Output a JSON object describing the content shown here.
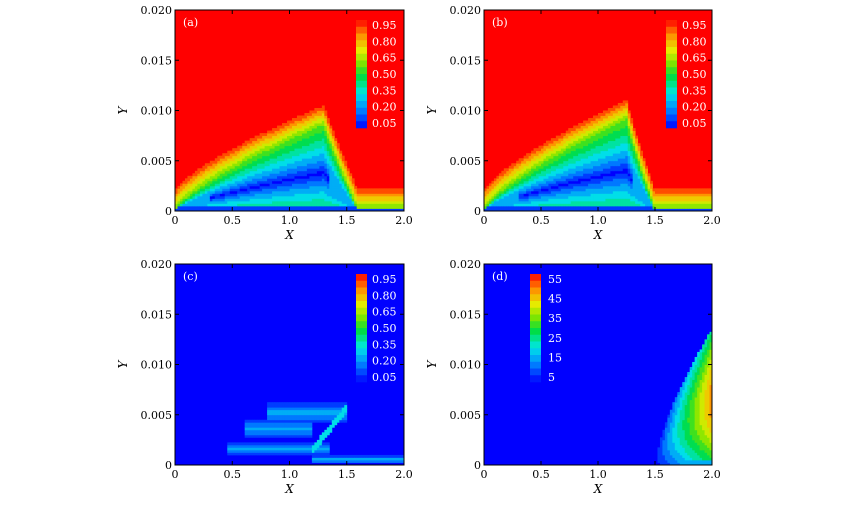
{
  "chart_data": [
    {
      "type": "heatmap",
      "panel": "(a)",
      "xlabel": "X",
      "ylabel": "Y",
      "xlim": [
        0,
        2.0
      ],
      "ylim": [
        0,
        0.02
      ],
      "x_ticks": [
        "0",
        "0.5",
        "1.0",
        "1.5",
        "2.0"
      ],
      "y_ticks": [
        "0",
        "0.005",
        "0.010",
        "0.015",
        "0.020"
      ],
      "legend": [
        "0.95",
        "0.80",
        "0.65",
        "0.50",
        "0.35",
        "0.20",
        "0.05"
      ],
      "legend_range": [
        0.05,
        0.95
      ],
      "background": "#ff0000",
      "background_level": 0.95,
      "features": [
        {
          "type": "tongue",
          "root_x": 0.0,
          "peak_x": 1.3,
          "peak_y": 0.0085,
          "bottom_x": 1.6,
          "min_level": 0.05
        }
      ]
    },
    {
      "type": "heatmap",
      "panel": "(b)",
      "xlabel": "X",
      "ylabel": "Y",
      "xlim": [
        0,
        2.0
      ],
      "ylim": [
        0,
        0.02
      ],
      "x_ticks": [
        "0",
        "0.5",
        "1.0",
        "1.5",
        "2.0"
      ],
      "y_ticks": [
        "0",
        "0.005",
        "0.010",
        "0.015",
        "0.020"
      ],
      "legend": [
        "0.95",
        "0.80",
        "0.65",
        "0.50",
        "0.35",
        "0.20",
        "0.05"
      ],
      "legend_range": [
        0.05,
        0.95
      ],
      "background": "#ff0000",
      "background_level": 0.95,
      "features": [
        {
          "type": "tongue",
          "root_x": 0.0,
          "peak_x": 1.25,
          "peak_y": 0.009,
          "bottom_x": 1.5,
          "min_level": 0.05
        }
      ]
    },
    {
      "type": "heatmap",
      "panel": "(c)",
      "xlabel": "X",
      "ylabel": "Y",
      "xlim": [
        0,
        2.0
      ],
      "ylim": [
        0,
        0.02
      ],
      "x_ticks": [
        "0",
        "0.5",
        "1.0",
        "1.5",
        "2.0"
      ],
      "y_ticks": [
        "0",
        "0.005",
        "0.010",
        "0.015",
        "0.020"
      ],
      "legend": [
        "0.95",
        "0.80",
        "0.65",
        "0.50",
        "0.35",
        "0.20",
        "0.05"
      ],
      "legend_range": [
        0.05,
        0.95
      ],
      "background": "#0000ff",
      "background_level": 0.05,
      "features": [
        {
          "type": "streaks",
          "x_range": [
            0.1,
            2.0
          ],
          "y_range": [
            0.0003,
            0.0065
          ],
          "max_level": 0.35
        }
      ]
    },
    {
      "type": "heatmap",
      "panel": "(d)",
      "xlabel": "X",
      "ylabel": "Y",
      "xlim": [
        0,
        2.0
      ],
      "ylim": [
        0,
        0.02
      ],
      "x_ticks": [
        "0",
        "0.5",
        "1.0",
        "1.5",
        "2.0"
      ],
      "y_ticks": [
        "0",
        "0.005",
        "0.010",
        "0.015",
        "0.020"
      ],
      "legend": [
        "55",
        "45",
        "35",
        "25",
        "15",
        "5"
      ],
      "legend_range": [
        0,
        60
      ],
      "background": "#0000ff",
      "background_level": 0,
      "features": [
        {
          "type": "hot-wedge",
          "x_start": 1.5,
          "x_end": 2.0,
          "top_y": 0.0135,
          "max_level": 60
        }
      ]
    }
  ]
}
